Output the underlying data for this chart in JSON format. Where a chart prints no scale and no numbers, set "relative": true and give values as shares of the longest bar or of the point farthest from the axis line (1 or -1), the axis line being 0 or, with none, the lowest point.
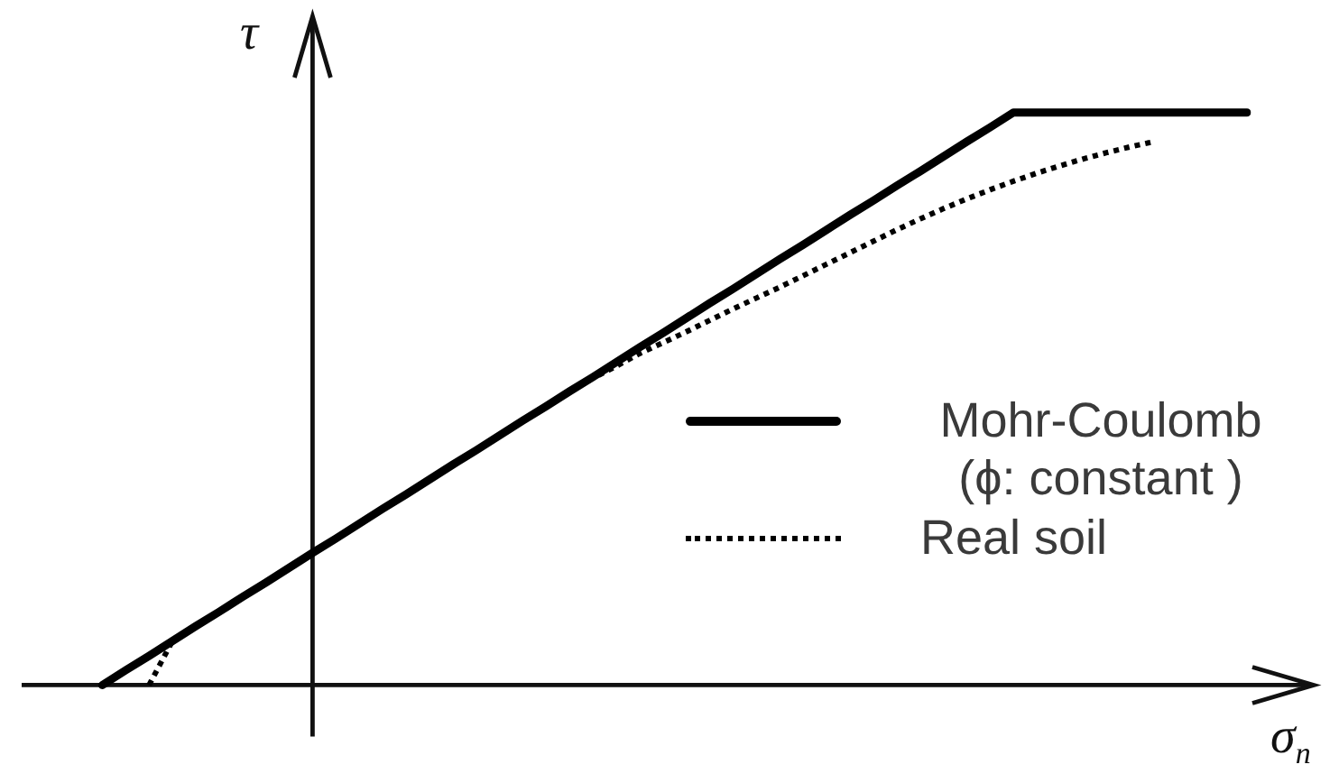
{
  "chart_data": {
    "type": "line",
    "xlabel": "σ$_{n}$",
    "ylabel": "τ",
    "relative": true,
    "legend": "right",
    "marker": "none",
    "categories": [
      null,
      null,
      null,
      null,
      null,
      null,
      null,
      null,
      null,
      null,
      null,
      null,
      null,
      null,
      null,
      null,
      null,
      null,
      null,
      null,
      null,
      null,
      null,
      null,
      null,
      null,
      null,
      null,
      null,
      null,
      null,
      null,
      null,
      null,
      null,
      null,
      null,
      null,
      null,
      null,
      null,
      null,
      null,
      null,
      null,
      null,
      null,
      null,
      null,
      null
    ],
    "series": [
      {
        "name": "Mohr-Coulomb (ϕ: constant )",
        "color": "#000000",
        "line_style": "solid",
        "values": [
          0,
          0.026,
          0.051,
          0.077,
          0.103,
          0.128,
          0.154,
          0.179,
          0.205,
          0.231,
          0.256,
          0.282,
          0.308,
          0.333,
          0.359,
          0.385,
          0.41,
          0.436,
          0.462,
          0.487,
          0.513,
          0.538,
          0.564,
          0.59,
          0.615,
          0.641,
          0.667,
          0.692,
          0.718,
          0.744,
          0.769,
          0.795,
          0.821,
          0.846,
          0.872,
          0.897,
          0.923,
          0.949,
          0.974,
          1,
          1,
          1,
          1,
          1,
          1,
          1,
          1,
          1,
          1,
          1
        ]
      },
      {
        "name": "Real soil",
        "color": "#000000",
        "line_style": "dotted",
        "values": [
          null,
          null,
          0,
          0.077,
          0.103,
          0.128,
          0.154,
          0.179,
          0.205,
          0.231,
          0.256,
          0.282,
          0.308,
          0.333,
          0.359,
          0.385,
          0.41,
          0.436,
          0.462,
          0.487,
          0.513,
          0.536,
          0.557,
          0.579,
          0.598,
          0.617,
          0.637,
          0.657,
          0.676,
          0.695,
          0.715,
          0.735,
          0.755,
          0.775,
          0.795,
          0.814,
          0.832,
          0.849,
          0.865,
          0.88,
          0.894,
          0.907,
          0.919,
          0.93,
          0.94,
          0.949,
          null,
          null,
          null,
          null
        ]
      }
    ]
  }
}
